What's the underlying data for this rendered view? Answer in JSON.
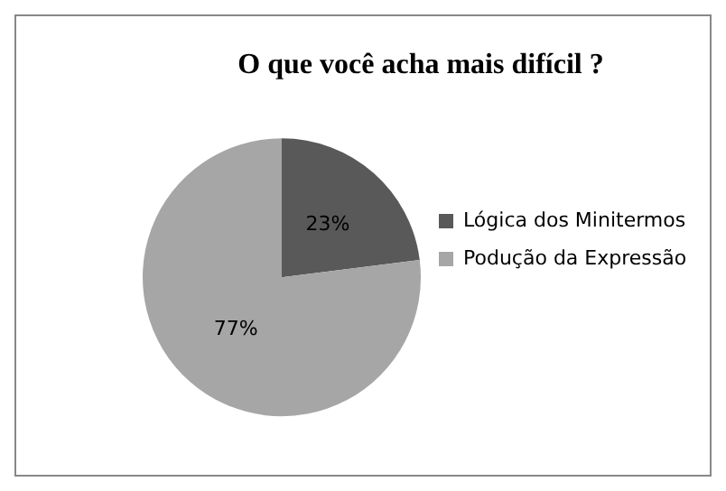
{
  "chart_data": {
    "type": "pie",
    "title": "O que você acha mais difícil ?",
    "categories": [
      "Lógica dos Minitermos",
      "Podução da Expressão"
    ],
    "values": [
      23,
      77
    ],
    "colors": [
      "#595959",
      "#a6a6a6"
    ],
    "value_labels": [
      "23%",
      "77%"
    ],
    "legend": "right"
  }
}
